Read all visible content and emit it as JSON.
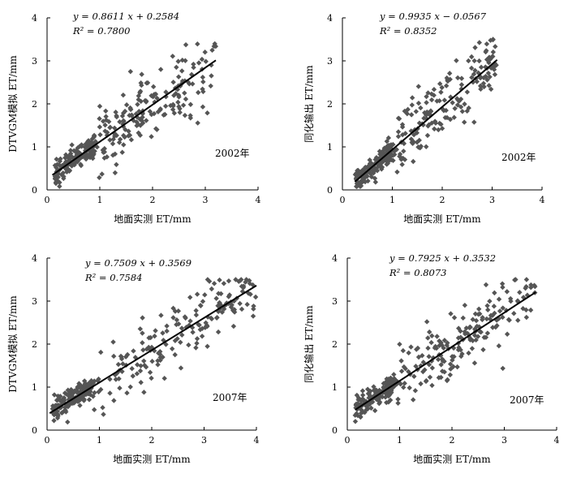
{
  "chart_data": [
    {
      "type": "scatter",
      "xlabel": "地面实测 ET/mm",
      "ylabel": "DTVGM模拟 ET/mm",
      "xlim": [
        0,
        4
      ],
      "ylim": [
        0,
        4
      ],
      "xticks": [
        "0",
        "1",
        "2",
        "3",
        "4"
      ],
      "yticks": [
        "0",
        "1",
        "2",
        "3",
        "4"
      ],
      "equation": "y = 0.8611 x + 0.2584",
      "r2": "R² = 0.7800",
      "year": "2002年",
      "trendline": {
        "slope": 0.8611,
        "intercept": 0.2584,
        "x_range": [
          0.1,
          3.2
        ]
      },
      "point_spread": [
        0.15,
        3.2
      ],
      "marker_color": "#555555",
      "grid": false
    },
    {
      "type": "scatter",
      "xlabel": "地面实测 ET/mm",
      "ylabel": "同化输出 ET/mm",
      "xlim": [
        0,
        4
      ],
      "ylim": [
        0,
        4
      ],
      "xticks": [
        "0",
        "1",
        "2",
        "3",
        "4"
      ],
      "yticks": [
        "0",
        "1",
        "2",
        "3",
        "4"
      ],
      "equation": "y = 0.9935 x − 0.0567",
      "r2": "R² = 0.8352",
      "year": "2002年",
      "trendline": {
        "slope": 0.9935,
        "intercept": -0.0567,
        "x_range": [
          0.25,
          3.1
        ]
      },
      "point_spread": [
        0.25,
        3.1
      ],
      "marker_color": "#555555",
      "grid": false
    },
    {
      "type": "scatter",
      "xlabel": "地面实测 ET/mm",
      "ylabel": "DTVGM模拟 ET/mm",
      "xlim": [
        0,
        4
      ],
      "ylim": [
        0,
        4
      ],
      "xticks": [
        "0",
        "1",
        "2",
        "3",
        "4"
      ],
      "yticks": [
        "0",
        "1",
        "2",
        "3",
        "4"
      ],
      "equation": "y = 0.7509 x + 0.3569",
      "r2": "R² = 0.7584",
      "year": "2007年",
      "trendline": {
        "slope": 0.7509,
        "intercept": 0.3569,
        "x_range": [
          0.05,
          4.0
        ]
      },
      "point_spread": [
        0.1,
        4.0
      ],
      "marker_color": "#555555",
      "grid": false
    },
    {
      "type": "scatter",
      "xlabel": "地面实测 ET/mm",
      "ylabel": "同化输出 ET/mm",
      "xlim": [
        0,
        4
      ],
      "ylim": [
        0,
        4
      ],
      "xticks": [
        "0",
        "1",
        "2",
        "3",
        "4"
      ],
      "yticks": [
        "0",
        "1",
        "2",
        "3",
        "4"
      ],
      "equation": "y = 0.7925 x + 0.3532",
      "r2": "R² = 0.8073",
      "year": "2007年",
      "trendline": {
        "slope": 0.7925,
        "intercept": 0.3532,
        "x_range": [
          0.15,
          3.6
        ]
      },
      "point_spread": [
        0.15,
        3.6
      ],
      "marker_color": "#555555",
      "grid": false
    }
  ]
}
